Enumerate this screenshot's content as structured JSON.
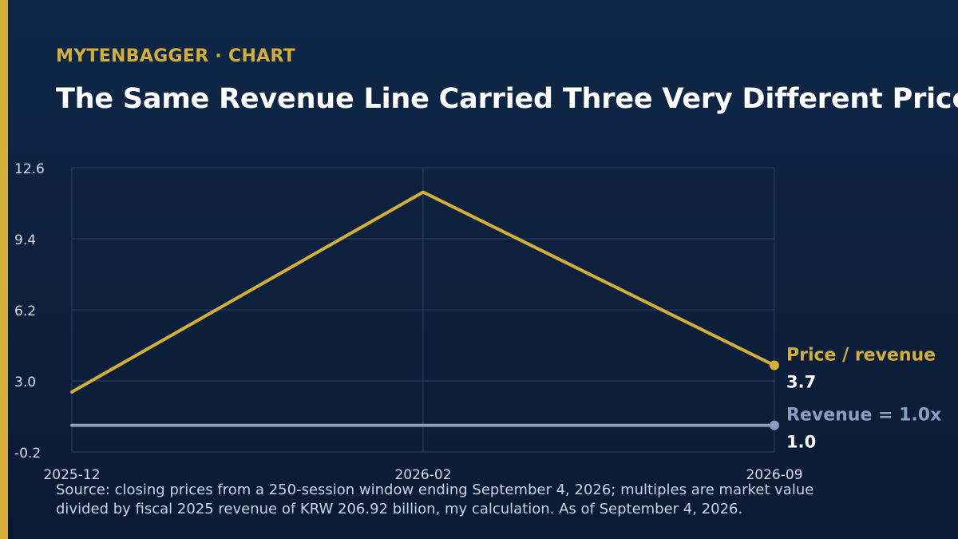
{
  "header": {
    "brand": "MYTENBAGGER · CHART",
    "title": "The Same Revenue Line Carried Three Very Different Prices"
  },
  "colors": {
    "background_top": "#0f2747",
    "background_bottom": "#0b1a33",
    "accent": "#d4af37",
    "revenue_series": "#8a9ec0",
    "gridline": "#2b4266",
    "tick_text": "#d7deea"
  },
  "chart_data": {
    "type": "line",
    "title": "The Same Revenue Line Carried Three Very Different Prices",
    "xlabel": "",
    "ylabel": "",
    "x": [
      "2025-12",
      "2026-02",
      "2026-09"
    ],
    "ylim": [
      -0.2,
      12.6
    ],
    "yticks": [
      "12.6",
      "9.4",
      "6.2",
      "3.0",
      "-0.2"
    ],
    "grid": true,
    "series": [
      {
        "name": "Price / revenue",
        "values": [
          2.5,
          11.5,
          3.7
        ],
        "end_label": "3.7",
        "color": "#d4af37"
      },
      {
        "name": "Revenue = 1.0x",
        "values": [
          1.0,
          1.0,
          1.0
        ],
        "end_label": "1.0",
        "color": "#8a9ec0"
      }
    ]
  },
  "footer": {
    "source": "Source: closing prices from a 250-session window ending September 4, 2026; multiples are market value divided by fiscal 2025 revenue of KRW 206.92 billion, my calculation. As of September 4, 2026."
  }
}
